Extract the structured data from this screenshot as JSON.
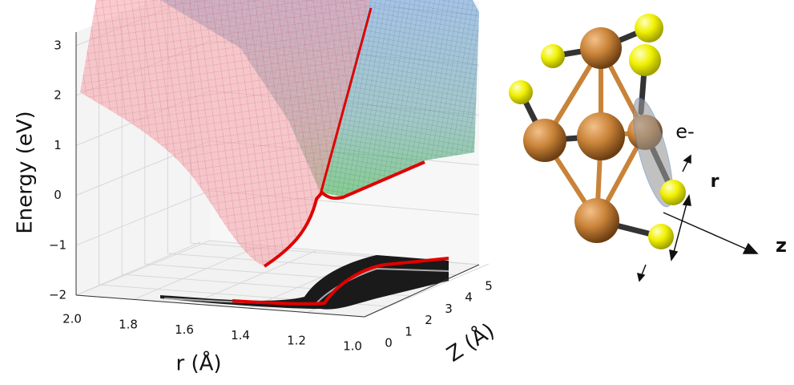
{
  "chart_data": {
    "type": "surface3d",
    "ylabel": "Energy (eV)",
    "xlabel": "r (Å)",
    "zlabel": "Z (Å)",
    "ylim": [
      -2,
      3
    ],
    "yticks": [
      {
        "value": -2,
        "label": "−2"
      },
      {
        "value": -1,
        "label": "−1"
      },
      0,
      1,
      2,
      3
    ],
    "xlim": [
      2,
      1
    ],
    "xticks": [
      {
        "value": 2,
        "label": "2.0"
      },
      {
        "value": 1.8,
        "label": "1.8"
      },
      {
        "value": 1.6,
        "label": "1.6"
      },
      {
        "value": 1.4,
        "label": "1.4"
      },
      {
        "value": 1.2,
        "label": "1.2"
      },
      {
        "value": 1,
        "label": "1.0"
      }
    ],
    "zlim": [
      0,
      5
    ],
    "zticks": [
      0,
      1,
      2,
      3,
      4,
      5
    ],
    "grid": true
  },
  "molecule": {
    "electron_label": "e-",
    "r_label": "r",
    "z_label": "z"
  }
}
